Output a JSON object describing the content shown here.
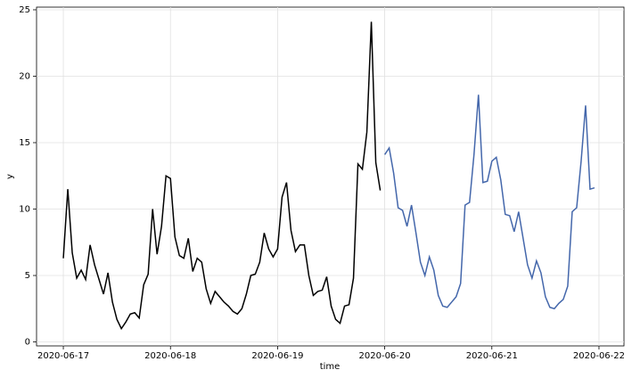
{
  "chart_data": {
    "type": "line",
    "x_label": "time",
    "y_label": "y",
    "xlim": [
      -6,
      125.6
    ],
    "ylim": [
      -0.3,
      25.2
    ],
    "xticks": [
      {
        "value": 0,
        "label": "2020-06-17"
      },
      {
        "value": 24,
        "label": "2020-06-18"
      },
      {
        "value": 48,
        "label": "2020-06-19"
      },
      {
        "value": 72,
        "label": "2020-06-20"
      },
      {
        "value": 96,
        "label": "2020-06-21"
      },
      {
        "value": 120,
        "label": "2020-06-22"
      }
    ],
    "yticks": [
      0,
      5,
      10,
      15,
      20,
      25
    ],
    "grid": true,
    "series": [
      {
        "color": "#000000",
        "x": [
          0,
          1,
          2,
          3,
          4,
          5,
          6,
          7,
          8,
          9,
          10,
          11,
          12,
          13,
          14,
          15,
          16,
          17,
          18,
          19,
          20,
          21,
          22,
          23,
          24,
          25,
          26,
          27,
          28,
          29,
          30,
          31,
          32,
          33,
          34,
          35,
          36,
          37,
          38,
          39,
          40,
          41,
          42,
          43,
          44,
          45,
          46,
          47,
          48,
          49,
          50,
          51,
          52,
          53,
          54,
          55,
          56,
          57,
          58,
          59,
          60,
          61,
          62,
          63,
          64,
          65,
          66,
          67,
          68,
          69,
          70,
          71
        ],
        "values": [
          6.3,
          11.5,
          6.7,
          4.8,
          5.4,
          4.7,
          7.3,
          5.8,
          4.7,
          3.6,
          5.2,
          3.0,
          1.7,
          1.0,
          1.5,
          2.1,
          2.2,
          1.8,
          4.3,
          5.1,
          10.0,
          6.6,
          8.7,
          12.5,
          12.3,
          7.9,
          6.5,
          6.3,
          7.8,
          5.3,
          6.3,
          6.0,
          4.0,
          2.9,
          3.8,
          3.4,
          3.0,
          2.7,
          2.3,
          2.1,
          2.5,
          3.6,
          5.0,
          5.1,
          6.0,
          8.2,
          7.0,
          6.4,
          7.0,
          10.9,
          12.0,
          8.4,
          6.8,
          7.3,
          7.3,
          5.0,
          3.5,
          3.8,
          3.9,
          4.9,
          2.7,
          1.7,
          1.4,
          2.7,
          2.8,
          4.8,
          13.4,
          13.0,
          15.8,
          24.1,
          13.5,
          11.4
        ]
      },
      {
        "color": "#4467ab",
        "x": [
          72,
          73,
          74,
          75,
          76,
          77,
          78,
          79,
          80,
          81,
          82,
          83,
          84,
          85,
          86,
          87,
          88,
          89,
          90,
          91,
          92,
          93,
          94,
          95,
          96,
          97,
          98,
          99,
          100,
          101,
          102,
          103,
          104,
          105,
          106,
          107,
          108,
          109,
          110,
          111,
          112,
          113,
          114,
          115,
          116,
          117,
          118,
          119
        ],
        "values": [
          14.1,
          14.6,
          12.7,
          10.1,
          9.9,
          8.7,
          10.3,
          8.2,
          6.0,
          5.0,
          6.4,
          5.4,
          3.5,
          2.7,
          2.6,
          3.0,
          3.4,
          4.4,
          10.3,
          10.5,
          14.1,
          18.6,
          12.0,
          12.1,
          13.6,
          13.9,
          12.2,
          9.6,
          9.5,
          8.3,
          9.8,
          7.8,
          5.8,
          4.8,
          6.1,
          5.2,
          3.4,
          2.6,
          2.5,
          2.9,
          3.2,
          4.2,
          9.8,
          10.1,
          13.6,
          17.8,
          11.5,
          11.6
        ]
      }
    ]
  }
}
